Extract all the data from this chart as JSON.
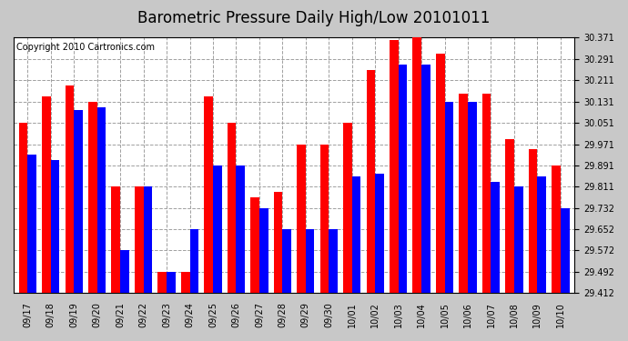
{
  "title": "Barometric Pressure Daily High/Low 20101011",
  "copyright": "Copyright 2010 Cartronics.com",
  "dates": [
    "09/17",
    "09/18",
    "09/19",
    "09/20",
    "09/21",
    "09/22",
    "09/23",
    "09/24",
    "09/25",
    "09/26",
    "09/27",
    "09/28",
    "09/29",
    "09/30",
    "10/01",
    "10/02",
    "10/03",
    "10/04",
    "10/05",
    "10/06",
    "10/07",
    "10/08",
    "10/09",
    "10/10"
  ],
  "highs": [
    30.051,
    30.151,
    30.191,
    30.131,
    29.811,
    29.811,
    29.492,
    29.492,
    30.151,
    30.051,
    29.771,
    29.791,
    29.971,
    29.971,
    30.051,
    30.251,
    30.361,
    30.371,
    30.311,
    30.161,
    30.161,
    29.991,
    29.951,
    29.891
  ],
  "lows": [
    29.931,
    29.911,
    30.101,
    30.111,
    29.572,
    29.812,
    29.492,
    29.652,
    29.891,
    29.891,
    29.732,
    29.652,
    29.652,
    29.652,
    29.851,
    29.861,
    30.271,
    30.271,
    30.131,
    30.131,
    29.831,
    29.811,
    29.851,
    29.732
  ],
  "ylim_min": 29.412,
  "ylim_max": 30.371,
  "yticks": [
    29.412,
    29.492,
    29.572,
    29.652,
    29.732,
    29.811,
    29.891,
    29.971,
    30.051,
    30.131,
    30.211,
    30.291,
    30.371
  ],
  "high_color": "#ff0000",
  "low_color": "#0000ff",
  "bg_color": "#c8c8c8",
  "plot_bg_color": "#ffffff",
  "grid_color": "#a0a0a0",
  "title_fontsize": 12,
  "copyright_fontsize": 7,
  "bar_width": 0.38
}
